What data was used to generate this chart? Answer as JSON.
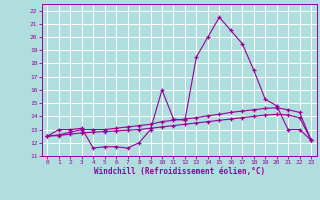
{
  "x": [
    0,
    1,
    2,
    3,
    4,
    5,
    6,
    7,
    8,
    9,
    10,
    11,
    12,
    13,
    14,
    15,
    16,
    17,
    18,
    19,
    20,
    21,
    22,
    23
  ],
  "line1": [
    12.5,
    13.0,
    13.0,
    13.1,
    11.6,
    11.7,
    11.7,
    11.6,
    12.0,
    13.0,
    16.0,
    13.8,
    13.7,
    18.5,
    20.0,
    21.5,
    20.5,
    19.5,
    17.5,
    15.3,
    14.8,
    13.0,
    13.0,
    12.2
  ],
  "line2": [
    12.5,
    12.6,
    12.8,
    13.0,
    13.0,
    13.0,
    13.1,
    13.2,
    13.3,
    13.4,
    13.6,
    13.7,
    13.8,
    13.9,
    14.05,
    14.15,
    14.3,
    14.4,
    14.5,
    14.6,
    14.65,
    14.5,
    14.3,
    12.2
  ],
  "line3": [
    12.5,
    12.55,
    12.65,
    12.75,
    12.8,
    12.85,
    12.9,
    12.95,
    13.0,
    13.1,
    13.2,
    13.3,
    13.4,
    13.5,
    13.6,
    13.7,
    13.8,
    13.9,
    14.0,
    14.1,
    14.15,
    14.1,
    13.9,
    12.2
  ],
  "line_color": "#990099",
  "bg_color": "#b0dede",
  "grid_color": "#ffffff",
  "xlabel": "Windchill (Refroidissement éolien,°C)",
  "ylim": [
    11,
    22.5
  ],
  "xlim_min": -0.5,
  "xlim_max": 23.5,
  "yticks": [
    11,
    12,
    13,
    14,
    15,
    16,
    17,
    18,
    19,
    20,
    21,
    22
  ],
  "xticks": [
    0,
    1,
    2,
    3,
    4,
    5,
    6,
    7,
    8,
    9,
    10,
    11,
    12,
    13,
    14,
    15,
    16,
    17,
    18,
    19,
    20,
    21,
    22,
    23
  ]
}
